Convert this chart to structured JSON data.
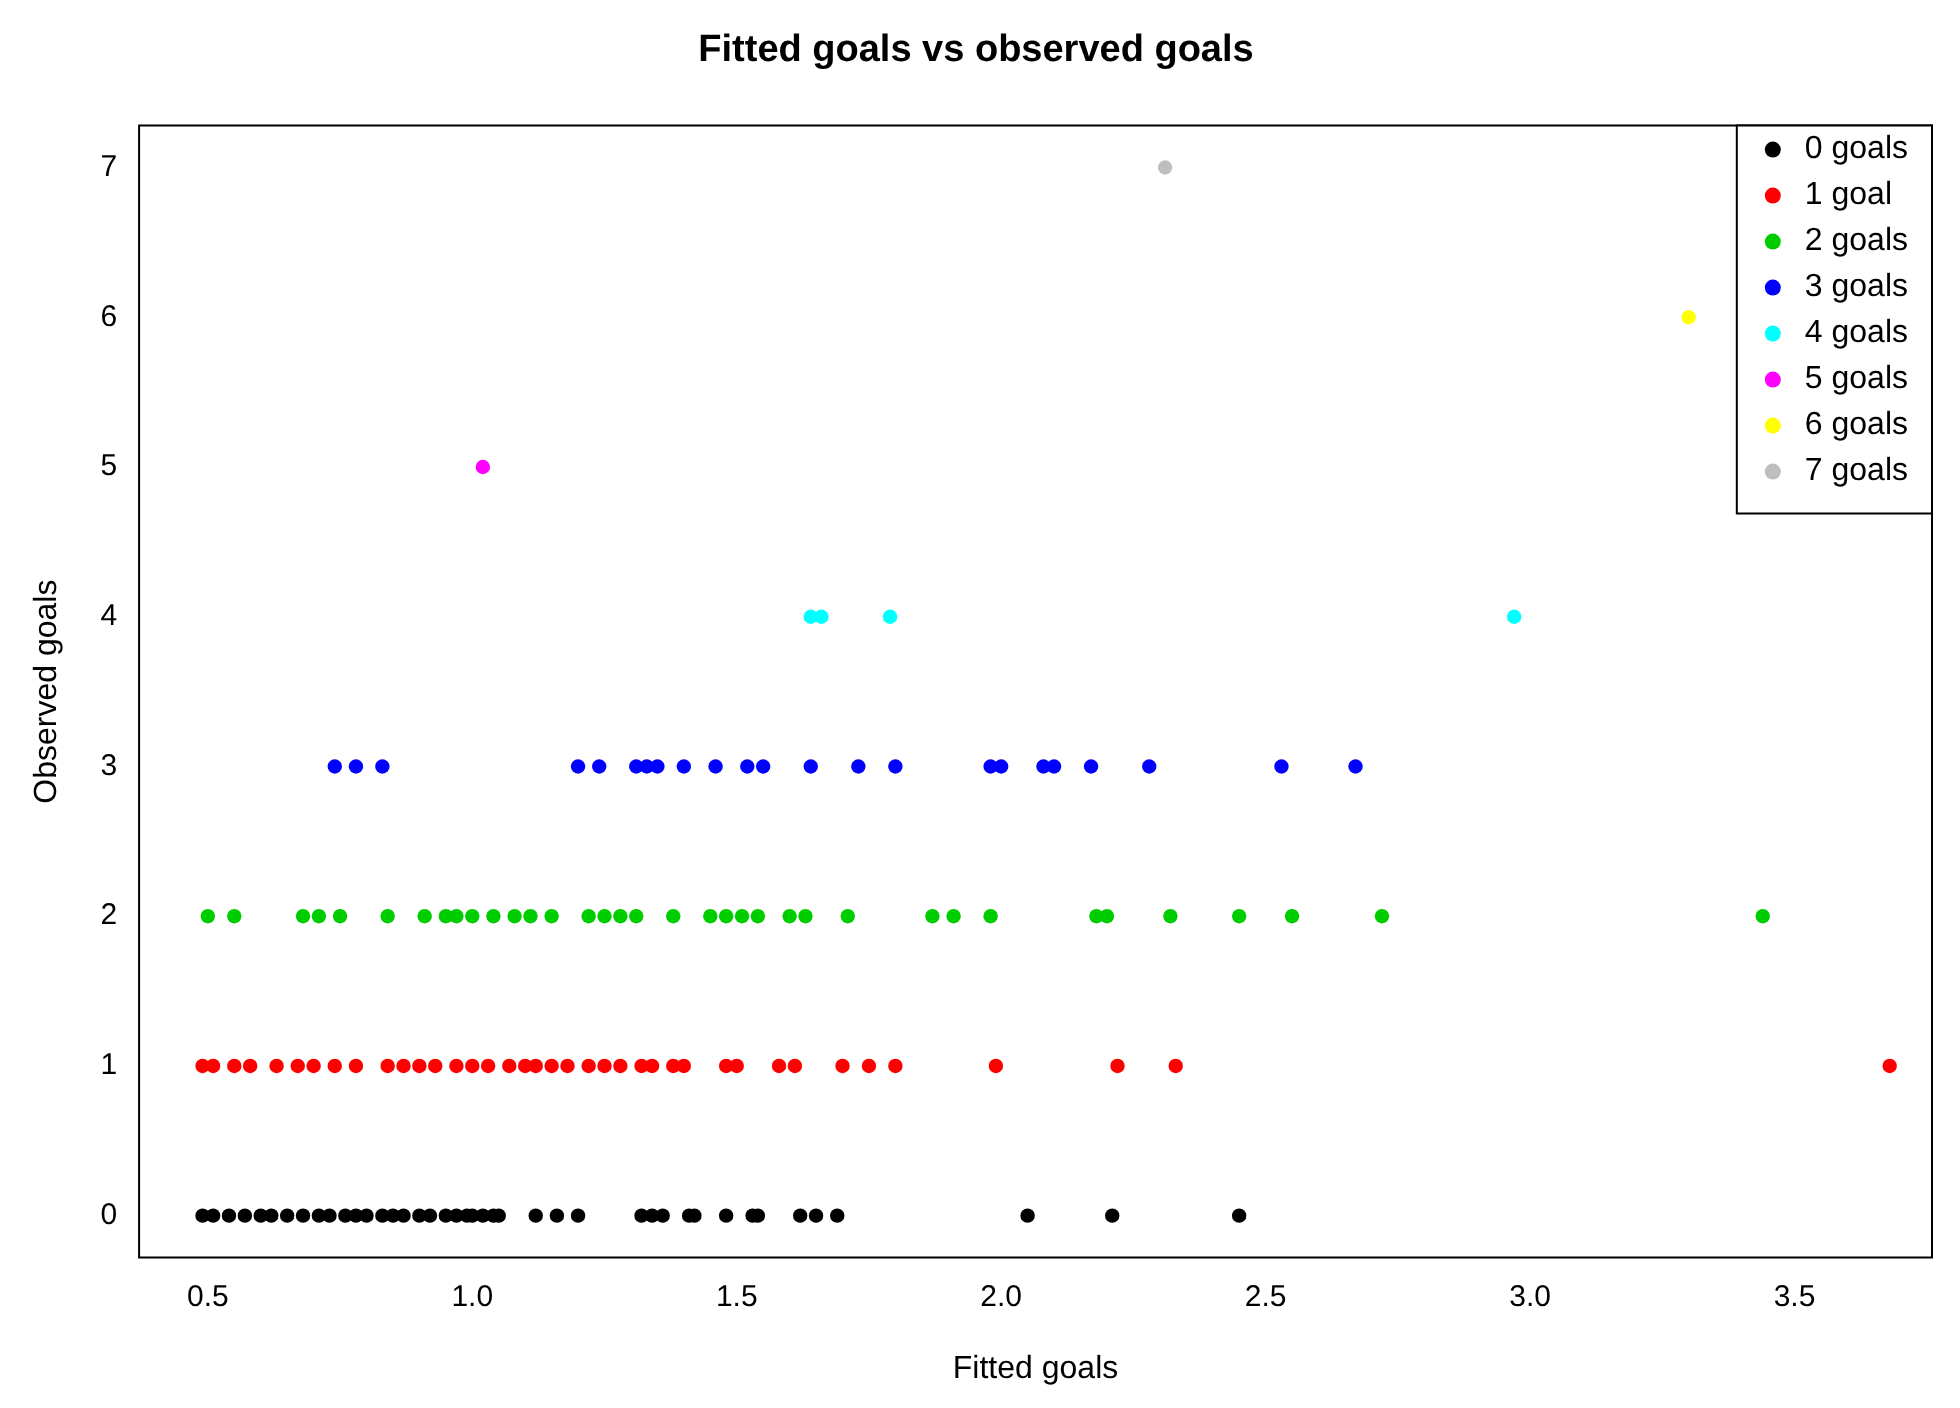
{
  "chart_data": {
    "type": "scatter",
    "title": "Fitted goals vs observed goals",
    "xlabel": "Fitted goals",
    "ylabel": "Observed goals",
    "xlim": [
      0.37,
      3.76
    ],
    "ylim": [
      -0.28,
      7.28
    ],
    "xticks": [
      0.5,
      {
        "value": 1,
        "label": "1.0"
      },
      1.5,
      {
        "value": 2,
        "label": "2.0"
      },
      2.5,
      {
        "value": 3,
        "label": "3.0"
      },
      3.5
    ],
    "yticks": [
      0,
      1,
      2,
      3,
      4,
      5,
      6,
      7
    ],
    "grid": false,
    "legend": "top right",
    "marker": "circle",
    "series": [
      {
        "name": "0 goals",
        "color": "#000000",
        "x": [
          0.49,
          0.51,
          0.54,
          0.57,
          0.6,
          0.62,
          0.65,
          0.68,
          0.71,
          0.73,
          0.76,
          0.78,
          0.8,
          0.83,
          0.85,
          0.87,
          0.9,
          0.92,
          0.95,
          0.97,
          0.99,
          1.0,
          1.02,
          1.04,
          1.05,
          1.12,
          1.16,
          1.2,
          1.32,
          1.34,
          1.36,
          1.41,
          1.42,
          1.48,
          1.53,
          1.54,
          1.62,
          1.65,
          1.69,
          2.05,
          2.21,
          2.45
        ],
        "values": [
          0,
          0,
          0,
          0,
          0,
          0,
          0,
          0,
          0,
          0,
          0,
          0,
          0,
          0,
          0,
          0,
          0,
          0,
          0,
          0,
          0,
          0,
          0,
          0,
          0,
          0,
          0,
          0,
          0,
          0,
          0,
          0,
          0,
          0,
          0,
          0,
          0,
          0,
          0,
          0,
          0,
          0
        ]
      },
      {
        "name": "1 goal",
        "color": "#ff0000",
        "x": [
          0.49,
          0.51,
          0.55,
          0.58,
          0.63,
          0.67,
          0.7,
          0.74,
          0.78,
          0.84,
          0.87,
          0.9,
          0.93,
          0.97,
          1.0,
          1.03,
          1.07,
          1.1,
          1.12,
          1.15,
          1.18,
          1.22,
          1.25,
          1.28,
          1.32,
          1.34,
          1.38,
          1.4,
          1.48,
          1.5,
          1.58,
          1.61,
          1.7,
          1.75,
          1.8,
          1.99,
          2.22,
          2.33,
          3.68
        ],
        "values": [
          1,
          1,
          1,
          1,
          1,
          1,
          1,
          1,
          1,
          1,
          1,
          1,
          1,
          1,
          1,
          1,
          1,
          1,
          1,
          1,
          1,
          1,
          1,
          1,
          1,
          1,
          1,
          1,
          1,
          1,
          1,
          1,
          1,
          1,
          1,
          1,
          1,
          1,
          1
        ]
      },
      {
        "name": "2 goals",
        "color": "#00cd00",
        "x": [
          0.5,
          0.55,
          0.68,
          0.71,
          0.75,
          0.84,
          0.91,
          0.95,
          0.97,
          1.0,
          1.04,
          1.08,
          1.11,
          1.15,
          1.22,
          1.25,
          1.28,
          1.31,
          1.38,
          1.45,
          1.48,
          1.51,
          1.54,
          1.6,
          1.63,
          1.71,
          1.87,
          1.91,
          1.98,
          2.18,
          2.2,
          2.32,
          2.45,
          2.55,
          2.72,
          3.44
        ],
        "values": [
          2,
          2,
          2,
          2,
          2,
          2,
          2,
          2,
          2,
          2,
          2,
          2,
          2,
          2,
          2,
          2,
          2,
          2,
          2,
          2,
          2,
          2,
          2,
          2,
          2,
          2,
          2,
          2,
          2,
          2,
          2,
          2,
          2,
          2,
          2,
          2
        ]
      },
      {
        "name": "3 goals",
        "color": "#0000ff",
        "x": [
          0.74,
          0.78,
          0.83,
          1.2,
          1.24,
          1.31,
          1.33,
          1.35,
          1.4,
          1.46,
          1.52,
          1.55,
          1.64,
          1.73,
          1.8,
          1.98,
          2.0,
          2.08,
          2.1,
          2.17,
          2.28,
          2.53,
          2.67
        ],
        "values": [
          3,
          3,
          3,
          3,
          3,
          3,
          3,
          3,
          3,
          3,
          3,
          3,
          3,
          3,
          3,
          3,
          3,
          3,
          3,
          3,
          3,
          3,
          3
        ]
      },
      {
        "name": "4 goals",
        "color": "#00ffff",
        "x": [
          1.64,
          1.66,
          1.79,
          2.97
        ],
        "values": [
          4,
          4,
          4,
          4
        ]
      },
      {
        "name": "5 goals",
        "color": "#ff00ff",
        "x": [
          1.02
        ],
        "values": [
          5
        ]
      },
      {
        "name": "6 goals",
        "color": "#ffff00",
        "x": [
          3.3
        ],
        "values": [
          6
        ]
      },
      {
        "name": "7 goals",
        "color": "#bebebe",
        "x": [
          2.31
        ],
        "values": [
          7
        ]
      }
    ]
  }
}
